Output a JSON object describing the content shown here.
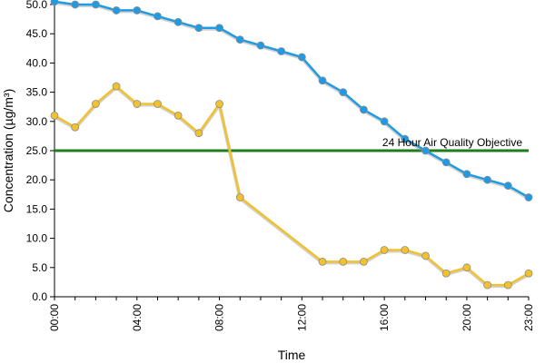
{
  "chart_data": {
    "type": "line",
    "title": "",
    "xlabel": "Time",
    "ylabel": "Concentration (µg/m³)",
    "ylim": [
      0,
      50
    ],
    "xlim": [
      0,
      23
    ],
    "y_ticks": [
      "0.0",
      "5.0",
      "10.0",
      "15.0",
      "20.0",
      "25.0",
      "30.0",
      "35.0",
      "40.0",
      "45.0",
      "50.0"
    ],
    "x_ticks": [
      "00:00",
      "04:00",
      "08:00",
      "12:00",
      "16:00",
      "20:00",
      "23:00"
    ],
    "x_tick_hours": [
      0,
      4,
      8,
      12,
      16,
      20,
      23
    ],
    "hours": [
      0,
      1,
      2,
      3,
      4,
      5,
      6,
      7,
      8,
      9,
      10,
      11,
      12,
      13,
      14,
      15,
      16,
      17,
      18,
      19,
      20,
      21,
      22,
      23
    ],
    "series": [
      {
        "color": "#1f9be6",
        "values": [
          50.5,
          50,
          50,
          49,
          49,
          48,
          47,
          46,
          46,
          44,
          43,
          42,
          41,
          37,
          35,
          32,
          30,
          27,
          25,
          23,
          21,
          20,
          19,
          17
        ]
      },
      {
        "color": "#f2c22e",
        "values": [
          31,
          29,
          33,
          36,
          33,
          33,
          31,
          28,
          33,
          17,
          null,
          null,
          null,
          6,
          6,
          6,
          8,
          8,
          7,
          4,
          5,
          2,
          2,
          4
        ]
      }
    ],
    "reference_line": {
      "value": 25,
      "label": "24 Hour Air Quality Objective",
      "color": "#1e7d1e"
    },
    "grid": false,
    "legend": "none"
  }
}
